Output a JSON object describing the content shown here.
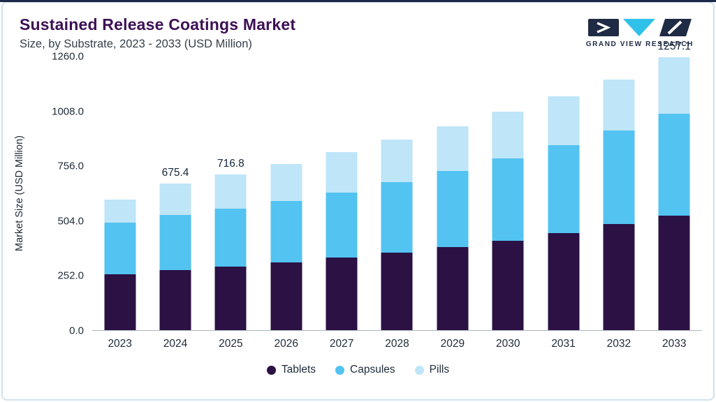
{
  "header": {
    "title": "Sustained Release Coatings Market",
    "subtitle": "Size, by Substrate, 2023 - 2033 (USD Million)",
    "brand": "GRAND VIEW RESEARCH"
  },
  "colors": {
    "accent_top": "#1b2a4a",
    "card_border": "#cfe2ee",
    "title": "#3D1056",
    "axis_text": "#1e2b38",
    "tablets": "#2B1144",
    "capsules": "#53C3F1",
    "pills": "#BEE5F8"
  },
  "chart_data": {
    "type": "bar",
    "stacked": true,
    "title": "Sustained Release Coatings Market Size, by Substrate, 2023 - 2033 (USD Million)",
    "categories": [
      "2023",
      "2024",
      "2025",
      "2026",
      "2027",
      "2028",
      "2029",
      "2030",
      "2031",
      "2032",
      "2033"
    ],
    "series": [
      {
        "name": "Tablets",
        "color": "#2B1144",
        "values": [
          258.0,
          276.0,
          293.0,
          312.0,
          333.0,
          356.0,
          381.0,
          410.0,
          448.0,
          489.0,
          527.0
        ]
      },
      {
        "name": "Capsules",
        "color": "#53C3F1",
        "values": [
          237.0,
          253.0,
          266.0,
          283.0,
          300.0,
          326.0,
          352.0,
          380.0,
          404.0,
          431.0,
          470.0
        ]
      },
      {
        "name": "Pills",
        "color": "#BEE5F8",
        "values": [
          105.0,
          146.4,
          157.8,
          171.5,
          187.0,
          196.0,
          207.0,
          217.0,
          226.0,
          235.0,
          260.1
        ]
      }
    ],
    "totals": [
      600.0,
      675.4,
      716.8,
      766.5,
      820.0,
      878.0,
      940.0,
      1007.0,
      1078.0,
      1155.0,
      1257.1
    ],
    "total_labels": [
      "",
      "675.4",
      "716.8",
      "",
      "",
      "",
      "",
      "",
      "",
      "",
      "1257.1"
    ],
    "xlabel": "",
    "ylabel": "Market Size (USD Million)",
    "yticks": [
      0,
      252,
      504,
      756,
      1008,
      1260
    ],
    "ytick_labels": [
      "0.0",
      "252.0",
      "504.0",
      "756.0",
      "1008.0",
      "1260.0"
    ],
    "ylim": [
      0,
      1260
    ],
    "grid": false,
    "legend_position": "bottom"
  }
}
